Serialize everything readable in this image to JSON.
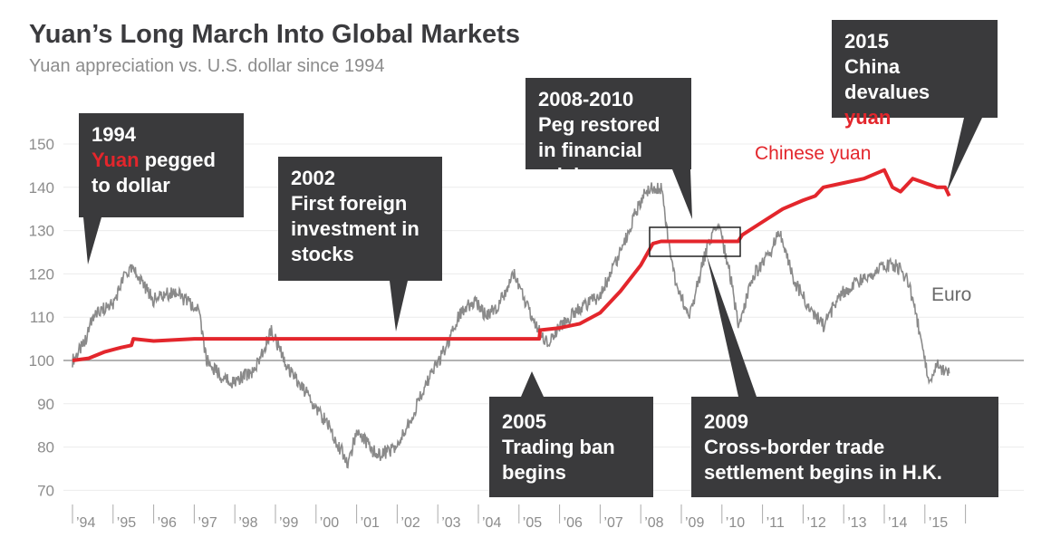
{
  "chart_data": {
    "type": "line",
    "title": "Yuan’s Long March Into Global Markets",
    "subtitle": "Yuan appreciation vs. U.S. dollar since 1994",
    "ylim": [
      70,
      155
    ],
    "yticks": [
      70,
      80,
      90,
      100,
      110,
      120,
      130,
      140,
      150
    ],
    "xlim": [
      1994,
      2016
    ],
    "xtick_labels": [
      "’94",
      "’95",
      "’96",
      "’97",
      "’98",
      "’99",
      "’00",
      "’01",
      "’02",
      "’03",
      "’04",
      "’05",
      "’06",
      "’07",
      "’08",
      "’09",
      "’10",
      "’11",
      "’12",
      "’13",
      "’14",
      "’15"
    ],
    "baseline": 100,
    "series": [
      {
        "name": "Euro",
        "color": "#8a8a8a",
        "points": [
          [
            1994.0,
            100
          ],
          [
            1994.3,
            104
          ],
          [
            1994.5,
            110
          ],
          [
            1994.8,
            112
          ],
          [
            1995.0,
            113
          ],
          [
            1995.3,
            120
          ],
          [
            1995.5,
            121
          ],
          [
            1995.7,
            118
          ],
          [
            1996.0,
            114
          ],
          [
            1996.5,
            116
          ],
          [
            1996.9,
            113
          ],
          [
            1997.1,
            112
          ],
          [
            1997.3,
            100
          ],
          [
            1997.7,
            96
          ],
          [
            1998.0,
            95
          ],
          [
            1998.5,
            98
          ],
          [
            1998.9,
            107
          ],
          [
            1999.3,
            98
          ],
          [
            1999.8,
            92
          ],
          [
            2000.3,
            85
          ],
          [
            2000.8,
            76
          ],
          [
            2001.0,
            84
          ],
          [
            2001.5,
            78
          ],
          [
            2002.0,
            80
          ],
          [
            2002.3,
            86
          ],
          [
            2002.8,
            96
          ],
          [
            2003.2,
            103
          ],
          [
            2003.5,
            110
          ],
          [
            2003.9,
            114
          ],
          [
            2004.2,
            110
          ],
          [
            2004.5,
            113
          ],
          [
            2004.9,
            120
          ],
          [
            2005.3,
            110
          ],
          [
            2005.7,
            104
          ],
          [
            2006.0,
            108
          ],
          [
            2006.5,
            112
          ],
          [
            2007.0,
            115
          ],
          [
            2007.5,
            125
          ],
          [
            2007.9,
            135
          ],
          [
            2008.2,
            140
          ],
          [
            2008.5,
            140
          ],
          [
            2008.8,
            120
          ],
          [
            2009.0,
            115
          ],
          [
            2009.2,
            110
          ],
          [
            2009.6,
            125
          ],
          [
            2009.9,
            132
          ],
          [
            2010.2,
            120
          ],
          [
            2010.4,
            108
          ],
          [
            2010.8,
            120
          ],
          [
            2011.2,
            125
          ],
          [
            2011.4,
            130
          ],
          [
            2011.8,
            118
          ],
          [
            2012.1,
            113
          ],
          [
            2012.5,
            108
          ],
          [
            2012.9,
            115
          ],
          [
            2013.3,
            118
          ],
          [
            2013.8,
            120
          ],
          [
            2014.0,
            122
          ],
          [
            2014.3,
            122
          ],
          [
            2014.6,
            118
          ],
          [
            2014.8,
            110
          ],
          [
            2015.0,
            100
          ],
          [
            2015.1,
            94
          ],
          [
            2015.3,
            99
          ],
          [
            2015.6,
            97
          ]
        ]
      },
      {
        "name": "Chinese yuan",
        "color": "#e3262c",
        "points": [
          [
            1994.0,
            100
          ],
          [
            1994.4,
            100.5
          ],
          [
            1994.8,
            102
          ],
          [
            1995.2,
            103
          ],
          [
            1995.45,
            103.5
          ],
          [
            1995.5,
            105
          ],
          [
            1996.0,
            104.5
          ],
          [
            1997.0,
            105
          ],
          [
            2005.5,
            105
          ],
          [
            2005.52,
            107
          ],
          [
            2006.0,
            107.5
          ],
          [
            2006.5,
            108.5
          ],
          [
            2007.0,
            111
          ],
          [
            2007.5,
            116
          ],
          [
            2008.0,
            122
          ],
          [
            2008.3,
            127
          ],
          [
            2008.5,
            127.5
          ],
          [
            2010.4,
            127.5
          ],
          [
            2010.5,
            129
          ],
          [
            2011.0,
            132
          ],
          [
            2011.5,
            135
          ],
          [
            2012.0,
            137
          ],
          [
            2012.3,
            138
          ],
          [
            2012.5,
            140
          ],
          [
            2013.0,
            141
          ],
          [
            2013.5,
            142
          ],
          [
            2014.0,
            144
          ],
          [
            2014.2,
            140
          ],
          [
            2014.4,
            139
          ],
          [
            2014.7,
            142
          ],
          [
            2015.0,
            141
          ],
          [
            2015.3,
            140
          ],
          [
            2015.5,
            140
          ],
          [
            2015.6,
            138
          ]
        ]
      }
    ],
    "legend": {
      "yuan": "Chinese yuan",
      "euro": "Euro"
    },
    "annotations": [
      {
        "year": "1994",
        "line2_red": "Yuan",
        "line2_rest": " pegged",
        "line3": "to dollar"
      },
      {
        "year": "2002",
        "text": "First foreign investment in stocks"
      },
      {
        "year": "2008-2010",
        "text": "Peg restored in financial crisis"
      },
      {
        "year": "2015",
        "line2": "China devalues",
        "line3_red": "yuan"
      },
      {
        "year": "2005",
        "text": "Trading ban begins"
      },
      {
        "year": "2009",
        "text": "Cross-border trade settlement begins in H.K."
      }
    ]
  }
}
